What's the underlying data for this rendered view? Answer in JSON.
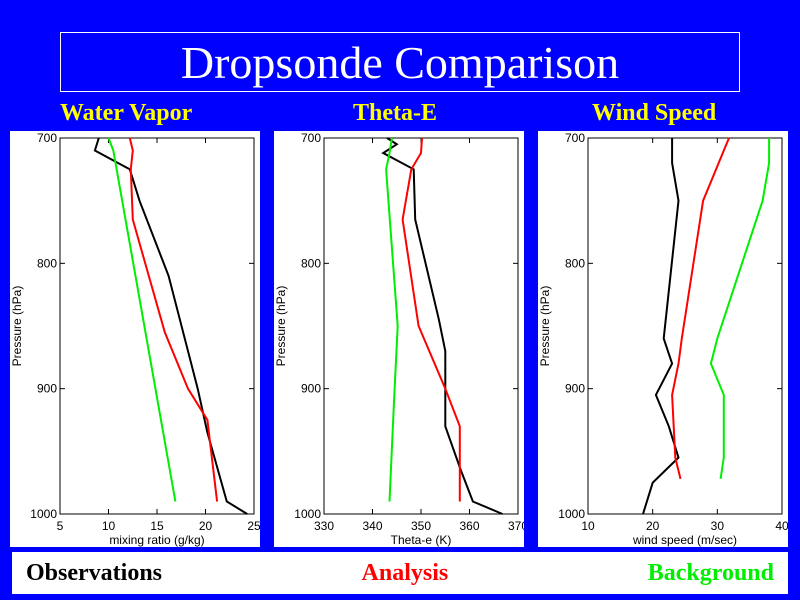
{
  "title": "Dropsonde Comparison",
  "legend": [
    {
      "label": "Observations",
      "color": "#000000"
    },
    {
      "label": "Analysis",
      "color": "#ff0000"
    },
    {
      "label": "Background",
      "color": "#00ee00"
    }
  ],
  "colors": {
    "background": "#0000ff",
    "panel_label": "#ffff00",
    "obs": "#000000",
    "analysis": "#ff0000",
    "background_series": "#00ee00"
  },
  "chart_data": [
    {
      "type": "line",
      "panel_title": "Water Vapor",
      "xlabel": "mixing ratio (g/kg)",
      "ylabel": "Pressure (hPa)",
      "xlim": [
        5,
        25
      ],
      "ylim": [
        700,
        1000
      ],
      "y_inverted": true,
      "xticks": [
        5,
        10,
        15,
        20,
        25
      ],
      "yticks": [
        700,
        800,
        900,
        1000
      ],
      "series": [
        {
          "name": "Observations",
          "color": "#000000",
          "points": [
            [
              9.0,
              700
            ],
            [
              8.6,
              710
            ],
            [
              12.2,
              725
            ],
            [
              13.2,
              750
            ],
            [
              16.2,
              810
            ],
            [
              19.2,
              900
            ],
            [
              20.2,
              935
            ],
            [
              22.2,
              990
            ],
            [
              24.3,
              1000
            ]
          ]
        },
        {
          "name": "Analysis",
          "color": "#ff0000",
          "points": [
            [
              12.2,
              700
            ],
            [
              12.5,
              710
            ],
            [
              12.3,
              725
            ],
            [
              12.5,
              765
            ],
            [
              15.8,
              855
            ],
            [
              18.2,
              900
            ],
            [
              20.2,
              925
            ],
            [
              21.2,
              990
            ]
          ]
        },
        {
          "name": "Background",
          "color": "#00ee00",
          "points": [
            [
              10.0,
              700
            ],
            [
              10.5,
              710
            ],
            [
              16.9,
              990
            ]
          ]
        }
      ]
    },
    {
      "type": "line",
      "panel_title": "Theta-E",
      "xlabel": "Theta-e (K)",
      "ylabel": "Pressure (hPa)",
      "xlim": [
        330,
        370
      ],
      "ylim": [
        700,
        1000
      ],
      "y_inverted": true,
      "xticks": [
        330,
        340,
        350,
        360,
        370
      ],
      "yticks": [
        700,
        800,
        900,
        1000
      ],
      "series": [
        {
          "name": "Observations",
          "color": "#000000",
          "points": [
            [
              343.0,
              700
            ],
            [
              345.0,
              705
            ],
            [
              342.2,
              712
            ],
            [
              348.5,
              725
            ],
            [
              348.8,
              765
            ],
            [
              353.7,
              845
            ],
            [
              355.0,
              870
            ],
            [
              355.0,
              930
            ],
            [
              358.2,
              965
            ],
            [
              360.7,
              990
            ],
            [
              366.8,
              1000
            ]
          ]
        },
        {
          "name": "Analysis",
          "color": "#ff0000",
          "points": [
            [
              350.2,
              700
            ],
            [
              350.0,
              712
            ],
            [
              348.0,
              725
            ],
            [
              346.2,
              765
            ],
            [
              349.5,
              850
            ],
            [
              355.0,
              900
            ],
            [
              358.0,
              930
            ],
            [
              358.0,
              990
            ]
          ]
        },
        {
          "name": "Background",
          "color": "#00ee00",
          "points": [
            [
              344.0,
              700
            ],
            [
              343.5,
              712
            ],
            [
              342.8,
              725
            ],
            [
              345.2,
              850
            ],
            [
              344.5,
              905
            ],
            [
              343.5,
              990
            ]
          ]
        }
      ]
    },
    {
      "type": "line",
      "panel_title": "Wind Speed",
      "xlabel": "wind speed (m/sec)",
      "ylabel": "Pressure (hPa)",
      "xlim": [
        10,
        40
      ],
      "ylim": [
        700,
        1000
      ],
      "y_inverted": true,
      "xticks": [
        10,
        20,
        30,
        40
      ],
      "yticks": [
        700,
        800,
        900,
        1000
      ],
      "series": [
        {
          "name": "Observations",
          "color": "#000000",
          "points": [
            [
              23.0,
              700
            ],
            [
              23.0,
              720
            ],
            [
              24.0,
              750
            ],
            [
              21.7,
              860
            ],
            [
              23.0,
              880
            ],
            [
              20.5,
              905
            ],
            [
              22.5,
              930
            ],
            [
              24.0,
              955
            ],
            [
              22.0,
              965
            ],
            [
              20.0,
              975
            ],
            [
              18.5,
              1000
            ]
          ]
        },
        {
          "name": "Analysis",
          "color": "#ff0000",
          "points": [
            [
              31.8,
              700
            ],
            [
              31.0,
              710
            ],
            [
              29.0,
              735
            ],
            [
              27.8,
              750
            ],
            [
              24.5,
              860
            ],
            [
              24.0,
              880
            ],
            [
              23.0,
              905
            ],
            [
              23.5,
              955
            ],
            [
              24.3,
              972
            ]
          ]
        },
        {
          "name": "Background",
          "color": "#00ee00",
          "points": [
            [
              38.0,
              700
            ],
            [
              38.0,
              720
            ],
            [
              37.0,
              750
            ],
            [
              30.0,
              860
            ],
            [
              29.0,
              880
            ],
            [
              31.0,
              905
            ],
            [
              31.0,
              955
            ],
            [
              30.5,
              972
            ]
          ]
        }
      ]
    }
  ]
}
